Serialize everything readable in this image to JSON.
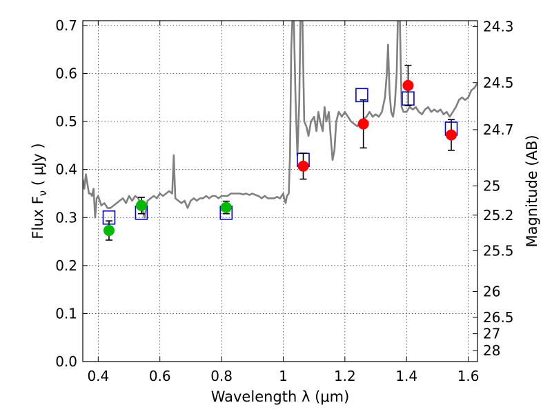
{
  "chart_data": {
    "type": "scatter",
    "xlabel": "Wavelength  λ (μm)",
    "ylabel": "Flux  F",
    "ylabel_sub": "ν",
    "ylabel_unit": "  ( μJy )",
    "y2label": "Magnitude (AB)",
    "xlim": [
      0.35,
      1.63
    ],
    "ylim": [
      0.0,
      0.71
    ],
    "grid": true,
    "x_ticks": [
      0.4,
      0.6,
      0.8,
      1.0,
      1.2,
      1.4,
      1.6
    ],
    "x_tick_labels": [
      "0.4",
      "0.6",
      "0.8",
      "1",
      "1.2",
      "1.4",
      "1.6"
    ],
    "y_ticks": [
      0.0,
      0.1,
      0.2,
      0.3,
      0.4,
      0.5,
      0.6,
      0.7
    ],
    "y_tick_labels": [
      "0.0",
      "0.1",
      "0.2",
      "0.3",
      "0.4",
      "0.5",
      "0.6",
      "0.7"
    ],
    "y2_ticks": [
      {
        "label": "24.3",
        "flux": 0.698
      },
      {
        "label": "24.5",
        "flux": 0.581
      },
      {
        "label": "24.7",
        "flux": 0.483
      },
      {
        "label": "25",
        "flux": 0.366
      },
      {
        "label": "25.2",
        "flux": 0.305
      },
      {
        "label": "25.5",
        "flux": 0.231
      },
      {
        "label": "26",
        "flux": 0.146
      },
      {
        "label": "26.5",
        "flux": 0.092
      },
      {
        "label": "27",
        "flux": 0.058
      },
      {
        "label": "28",
        "flux": 0.023
      }
    ],
    "model_spectrum": {
      "color": "#808080",
      "points": [
        [
          0.35,
          0.38
        ],
        [
          0.355,
          0.36
        ],
        [
          0.36,
          0.39
        ],
        [
          0.365,
          0.37
        ],
        [
          0.37,
          0.35
        ],
        [
          0.375,
          0.35
        ],
        [
          0.38,
          0.345
        ],
        [
          0.385,
          0.36
        ],
        [
          0.39,
          0.3
        ],
        [
          0.395,
          0.34
        ],
        [
          0.4,
          0.345
        ],
        [
          0.41,
          0.325
        ],
        [
          0.42,
          0.33
        ],
        [
          0.43,
          0.32
        ],
        [
          0.44,
          0.32
        ],
        [
          0.45,
          0.325
        ],
        [
          0.46,
          0.33
        ],
        [
          0.47,
          0.335
        ],
        [
          0.48,
          0.34
        ],
        [
          0.49,
          0.33
        ],
        [
          0.5,
          0.345
        ],
        [
          0.51,
          0.335
        ],
        [
          0.52,
          0.345
        ],
        [
          0.53,
          0.34
        ],
        [
          0.54,
          0.325
        ],
        [
          0.55,
          0.3
        ],
        [
          0.56,
          0.335
        ],
        [
          0.57,
          0.34
        ],
        [
          0.58,
          0.345
        ],
        [
          0.59,
          0.34
        ],
        [
          0.6,
          0.35
        ],
        [
          0.61,
          0.345
        ],
        [
          0.62,
          0.35
        ],
        [
          0.63,
          0.355
        ],
        [
          0.64,
          0.35
        ],
        [
          0.645,
          0.43
        ],
        [
          0.65,
          0.34
        ],
        [
          0.66,
          0.335
        ],
        [
          0.67,
          0.33
        ],
        [
          0.68,
          0.335
        ],
        [
          0.69,
          0.32
        ],
        [
          0.7,
          0.335
        ],
        [
          0.71,
          0.34
        ],
        [
          0.72,
          0.335
        ],
        [
          0.73,
          0.34
        ],
        [
          0.74,
          0.34
        ],
        [
          0.75,
          0.345
        ],
        [
          0.76,
          0.34
        ],
        [
          0.77,
          0.345
        ],
        [
          0.78,
          0.345
        ],
        [
          0.79,
          0.34
        ],
        [
          0.8,
          0.345
        ],
        [
          0.81,
          0.345
        ],
        [
          0.82,
          0.345
        ],
        [
          0.83,
          0.35
        ],
        [
          0.84,
          0.35
        ],
        [
          0.85,
          0.35
        ],
        [
          0.86,
          0.35
        ],
        [
          0.87,
          0.348
        ],
        [
          0.88,
          0.35
        ],
        [
          0.89,
          0.347
        ],
        [
          0.9,
          0.35
        ],
        [
          0.91,
          0.347
        ],
        [
          0.92,
          0.345
        ],
        [
          0.93,
          0.34
        ],
        [
          0.94,
          0.345
        ],
        [
          0.95,
          0.34
        ],
        [
          0.96,
          0.34
        ],
        [
          0.97,
          0.34
        ],
        [
          0.98,
          0.343
        ],
        [
          0.99,
          0.34
        ],
        [
          0.995,
          0.345
        ],
        [
          1.0,
          0.35
        ],
        [
          1.003,
          0.34
        ],
        [
          1.008,
          0.33
        ],
        [
          1.012,
          0.345
        ],
        [
          1.018,
          0.35
        ],
        [
          1.022,
          0.43
        ],
        [
          1.026,
          0.65
        ],
        [
          1.03,
          0.72
        ],
        [
          1.034,
          0.72
        ],
        [
          1.04,
          0.55
        ],
        [
          1.046,
          0.43
        ],
        [
          1.052,
          0.54
        ],
        [
          1.056,
          0.72
        ],
        [
          1.062,
          0.72
        ],
        [
          1.068,
          0.5
        ],
        [
          1.075,
          0.49
        ],
        [
          1.082,
          0.47
        ],
        [
          1.09,
          0.5
        ],
        [
          1.1,
          0.51
        ],
        [
          1.108,
          0.48
        ],
        [
          1.114,
          0.52
        ],
        [
          1.12,
          0.5
        ],
        [
          1.128,
          0.48
        ],
        [
          1.134,
          0.53
        ],
        [
          1.14,
          0.5
        ],
        [
          1.148,
          0.52
        ],
        [
          1.155,
          0.46
        ],
        [
          1.16,
          0.42
        ],
        [
          1.166,
          0.44
        ],
        [
          1.172,
          0.5
        ],
        [
          1.18,
          0.52
        ],
        [
          1.19,
          0.51
        ],
        [
          1.2,
          0.52
        ],
        [
          1.21,
          0.51
        ],
        [
          1.22,
          0.5
        ],
        [
          1.23,
          0.495
        ],
        [
          1.24,
          0.49
        ],
        [
          1.25,
          0.5
        ],
        [
          1.26,
          0.505
        ],
        [
          1.27,
          0.51
        ],
        [
          1.28,
          0.52
        ],
        [
          1.29,
          0.51
        ],
        [
          1.3,
          0.515
        ],
        [
          1.31,
          0.51
        ],
        [
          1.32,
          0.52
        ],
        [
          1.33,
          0.55
        ],
        [
          1.336,
          0.6
        ],
        [
          1.34,
          0.66
        ],
        [
          1.345,
          0.56
        ],
        [
          1.35,
          0.52
        ],
        [
          1.356,
          0.51
        ],
        [
          1.362,
          0.535
        ],
        [
          1.368,
          0.6
        ],
        [
          1.372,
          0.72
        ],
        [
          1.378,
          0.72
        ],
        [
          1.384,
          0.53
        ],
        [
          1.39,
          0.52
        ],
        [
          1.4,
          0.52
        ],
        [
          1.41,
          0.53
        ],
        [
          1.42,
          0.525
        ],
        [
          1.43,
          0.53
        ],
        [
          1.44,
          0.52
        ],
        [
          1.45,
          0.515
        ],
        [
          1.46,
          0.525
        ],
        [
          1.47,
          0.53
        ],
        [
          1.48,
          0.52
        ],
        [
          1.49,
          0.525
        ],
        [
          1.5,
          0.52
        ],
        [
          1.51,
          0.525
        ],
        [
          1.52,
          0.515
        ],
        [
          1.53,
          0.52
        ],
        [
          1.54,
          0.51
        ],
        [
          1.55,
          0.52
        ],
        [
          1.56,
          0.53
        ],
        [
          1.57,
          0.545
        ],
        [
          1.58,
          0.55
        ],
        [
          1.59,
          0.545
        ],
        [
          1.6,
          0.55
        ],
        [
          1.61,
          0.565
        ],
        [
          1.62,
          0.57
        ],
        [
          1.63,
          0.58
        ]
      ]
    },
    "model_photometry": {
      "marker": "open-square",
      "color": "#0000cc",
      "points": [
        [
          0.435,
          0.3
        ],
        [
          0.54,
          0.31
        ],
        [
          0.815,
          0.31
        ],
        [
          1.065,
          0.42
        ],
        [
          1.255,
          0.555
        ],
        [
          1.405,
          0.548
        ],
        [
          1.545,
          0.485
        ]
      ]
    },
    "observed_optical": {
      "marker": "filled-circle",
      "color": "#00bb00",
      "points": [
        {
          "x": 0.435,
          "y": 0.273,
          "err": 0.02
        },
        {
          "x": 0.54,
          "y": 0.325,
          "err": 0.017
        },
        {
          "x": 0.815,
          "y": 0.321,
          "err": 0.013
        }
      ]
    },
    "observed_nir": {
      "marker": "filled-circle",
      "color": "#ff0000",
      "points": [
        {
          "x": 1.065,
          "y": 0.407,
          "err": 0.027
        },
        {
          "x": 1.26,
          "y": 0.495,
          "err": 0.05
        },
        {
          "x": 1.405,
          "y": 0.575,
          "err": 0.042
        },
        {
          "x": 1.545,
          "y": 0.472,
          "err": 0.032
        }
      ]
    }
  }
}
